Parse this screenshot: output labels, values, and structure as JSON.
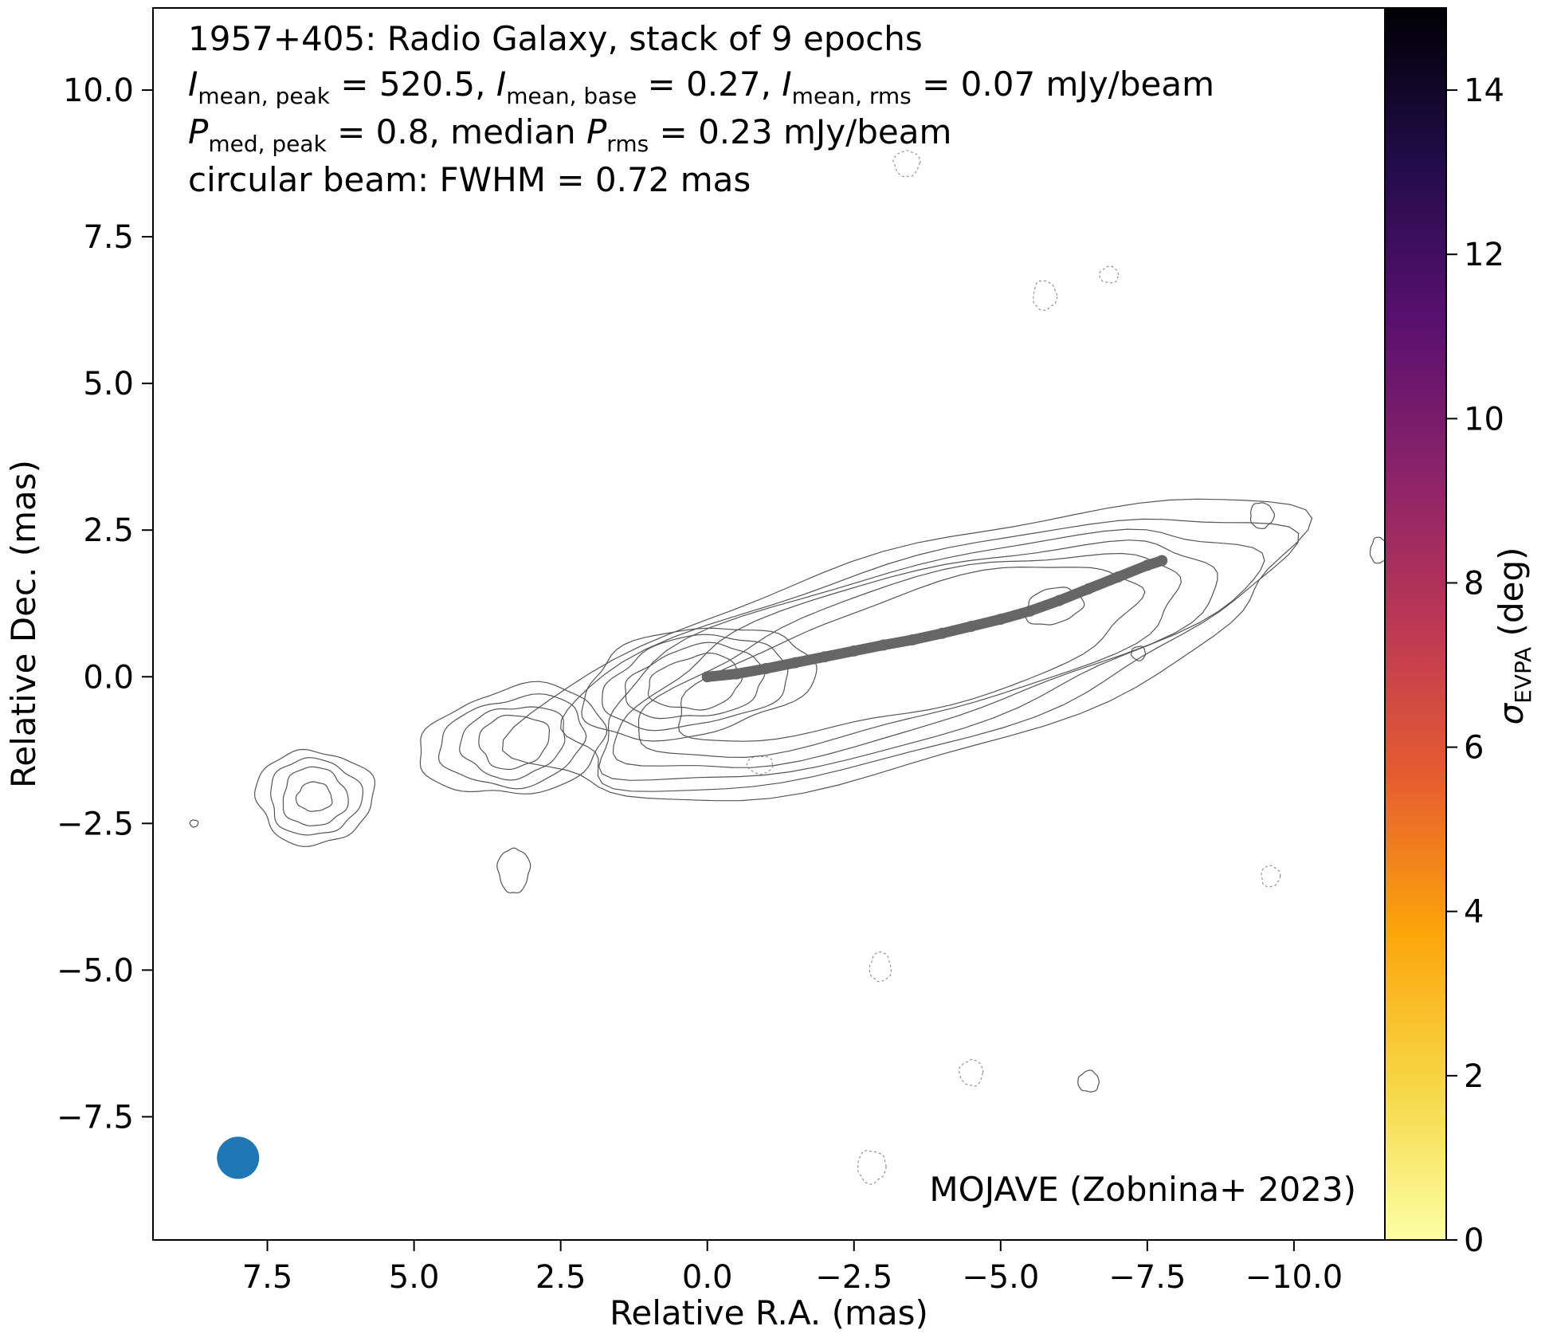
{
  "chart_data": {
    "type": "contour",
    "title_lines": [
      "1957+405: Radio Galaxy, stack of 9 epochs",
      {
        "I_mean_peak": "520.5",
        "I_mean_base": "0.27",
        "I_mean_rms": "0.07",
        "unit": "mJy/beam"
      },
      {
        "P_med_peak": "0.8",
        "median_P_rms": "0.23",
        "unit": "mJy/beam"
      },
      "circular beam: FWHM = 0.72 mas"
    ],
    "text": {
      "line1": "1957+405: Radio Galaxy, stack of 9 epochs",
      "l2_sym": "I",
      "l2_sub_a": "mean, peak",
      "l2_val_a": " = 520.5, ",
      "l2_sub_b": "mean, base",
      "l2_val_b": " = 0.27, ",
      "l2_sub_c": "mean, rms",
      "l2_val_c": " = 0.07 mJy/beam",
      "l3_sym": "P",
      "l3_sub_a": "med, peak",
      "l3_val_a": " = 0.8, median ",
      "l3_sub_b": "rms",
      "l3_val_b": " = 0.23 mJy/beam",
      "line4": "circular beam: FWHM = 0.72 mas",
      "credit": "MOJAVE (Zobnina+ 2023)",
      "cbar_sym": "σ",
      "cbar_sub": "EVPA",
      "cbar_unit": " (deg)"
    },
    "xlabel": "Relative R.A. (mas)",
    "ylabel": "Relative Dec. (mas)",
    "xlim": [
      9.45,
      -11.55
    ],
    "ylim": [
      -9.6,
      11.4
    ],
    "xticks": [
      7.5,
      5.0,
      2.5,
      0.0,
      -2.5,
      -5.0,
      -7.5,
      -10.0
    ],
    "xtick_labels": [
      "7.5",
      "5.0",
      "2.5",
      "0.0",
      "−2.5",
      "−5.0",
      "−7.5",
      "−10.0"
    ],
    "yticks": [
      10.0,
      7.5,
      5.0,
      2.5,
      0.0,
      -2.5,
      -5.0,
      -7.5
    ],
    "ytick_labels": [
      "10.0",
      "7.5",
      "5.0",
      "2.5",
      "0.0",
      "−2.5",
      "−5.0",
      "−7.5"
    ],
    "colorbar": {
      "label": "σEVPA (deg)",
      "min": 0,
      "max": 15,
      "ticks": [
        0,
        2,
        4,
        6,
        8,
        10,
        12,
        14
      ],
      "tick_labels": [
        "0",
        "2",
        "4",
        "6",
        "8",
        "10",
        "12",
        "14"
      ],
      "colormap": "inferno_r",
      "colors": [
        "#fcffa4",
        "#f6d746",
        "#fca50a",
        "#e65d2f",
        "#bc3754",
        "#8a226a",
        "#57106e",
        "#210c4a",
        "#000004"
      ]
    },
    "ridge_line": {
      "color": "#666666",
      "points": [
        [
          0.0,
          0.0
        ],
        [
          -0.5,
          0.05
        ],
        [
          -1.0,
          0.14
        ],
        [
          -1.5,
          0.24
        ],
        [
          -2.0,
          0.34
        ],
        [
          -2.5,
          0.44
        ],
        [
          -3.0,
          0.54
        ],
        [
          -3.5,
          0.63
        ],
        [
          -4.0,
          0.74
        ],
        [
          -4.5,
          0.86
        ],
        [
          -5.0,
          0.98
        ],
        [
          -5.5,
          1.12
        ],
        [
          -6.0,
          1.3
        ],
        [
          -6.5,
          1.5
        ],
        [
          -7.0,
          1.7
        ],
        [
          -7.5,
          1.9
        ],
        [
          -7.75,
          1.98
        ]
      ]
    },
    "contour_sets": [
      {
        "cx": -3.5,
        "cy": 0.4,
        "rx": [
          6.8,
          6.3,
          5.8,
          5.3,
          4.8,
          4.1
        ],
        "ry": [
          1.8,
          1.6,
          1.45,
          1.3,
          1.15,
          1.0
        ],
        "angle_deg": 16
      },
      {
        "cx": 0.2,
        "cy": -0.1,
        "rx": [
          2.0,
          1.6,
          1.2,
          0.8
        ],
        "ry": [
          0.9,
          0.75,
          0.6,
          0.45
        ],
        "angle_deg": 10
      },
      {
        "cx": 3.3,
        "cy": -1.1,
        "rx": [
          1.6,
          1.25,
          0.9,
          0.6
        ],
        "ry": [
          0.9,
          0.75,
          0.6,
          0.45
        ],
        "angle_deg": 10
      },
      {
        "cx": 6.7,
        "cy": -2.05,
        "rx": [
          1.0,
          0.78,
          0.55,
          0.3
        ],
        "ry": [
          0.8,
          0.65,
          0.5,
          0.25
        ],
        "angle_deg": 0
      },
      {
        "cx": -5.9,
        "cy": 1.2,
        "rx": [
          0.5
        ],
        "ry": [
          0.3
        ],
        "angle_deg": 15
      }
    ],
    "positive_islands": [
      [
        3.3,
        -3.3,
        0.27,
        0.38
      ],
      [
        -9.45,
        2.75,
        0.2,
        0.22
      ],
      [
        -11.45,
        2.15,
        0.15,
        0.22
      ],
      [
        -6.5,
        -6.9,
        0.18,
        0.18
      ],
      [
        -7.35,
        0.4,
        0.12,
        0.12
      ],
      [
        8.75,
        -2.5,
        0.07,
        0.06
      ]
    ],
    "negative_islands": [
      [
        -3.4,
        8.75,
        0.22,
        0.22
      ],
      [
        -5.75,
        6.5,
        0.2,
        0.25
      ],
      [
        -6.85,
        6.85,
        0.16,
        0.14
      ],
      [
        -0.9,
        -1.5,
        0.22,
        0.15
      ],
      [
        -9.6,
        -3.4,
        0.16,
        0.18
      ],
      [
        -2.95,
        -4.95,
        0.18,
        0.25
      ],
      [
        -4.5,
        -6.75,
        0.2,
        0.22
      ],
      [
        -2.8,
        -8.35,
        0.24,
        0.28
      ]
    ],
    "beam": {
      "x": 8.0,
      "y": -8.2,
      "fwhm": 0.72,
      "color": "#1f77b4"
    }
  }
}
